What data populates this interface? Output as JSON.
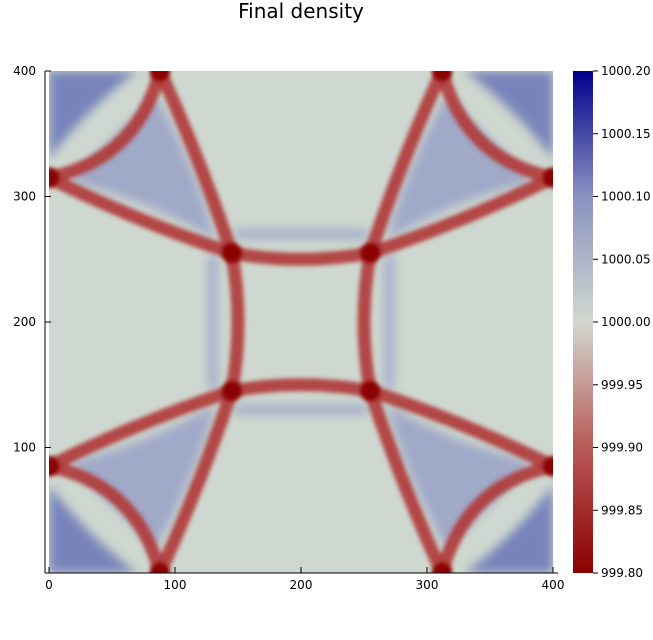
{
  "chart_data": {
    "type": "heatmap",
    "title": "Final density",
    "xlabel": "",
    "ylabel": "",
    "xlim": [
      0,
      400
    ],
    "ylim": [
      0,
      400
    ],
    "x_ticks": [
      0,
      100,
      200,
      300,
      400
    ],
    "y_ticks": [
      100,
      200,
      300,
      400
    ],
    "colorbar": {
      "range": [
        999.8,
        1000.2
      ],
      "ticks": [
        "1000.20",
        "1000.15",
        "1000.10",
        "1000.05",
        "1000.00",
        "999.95",
        "999.90",
        "999.85",
        "999.80"
      ],
      "colormap": [
        "#8b0000",
        "#c9ccd3",
        "#00008b"
      ]
    },
    "features": {
      "center_square_corners": [
        [
          145,
          145
        ],
        [
          255,
          145
        ],
        [
          255,
          255
        ],
        [
          145,
          255
        ]
      ],
      "edge_nodes": [
        [
          88,
          400
        ],
        [
          312,
          400
        ],
        [
          0,
          315
        ],
        [
          400,
          315
        ],
        [
          0,
          85
        ],
        [
          400,
          85
        ],
        [
          88,
          0
        ],
        [
          312,
          0
        ]
      ],
      "background_value": 1000.0,
      "front_min_value": 999.8,
      "overshoot_max_value": 1000.2
    },
    "grid": false,
    "legend": "colorbar-right"
  }
}
